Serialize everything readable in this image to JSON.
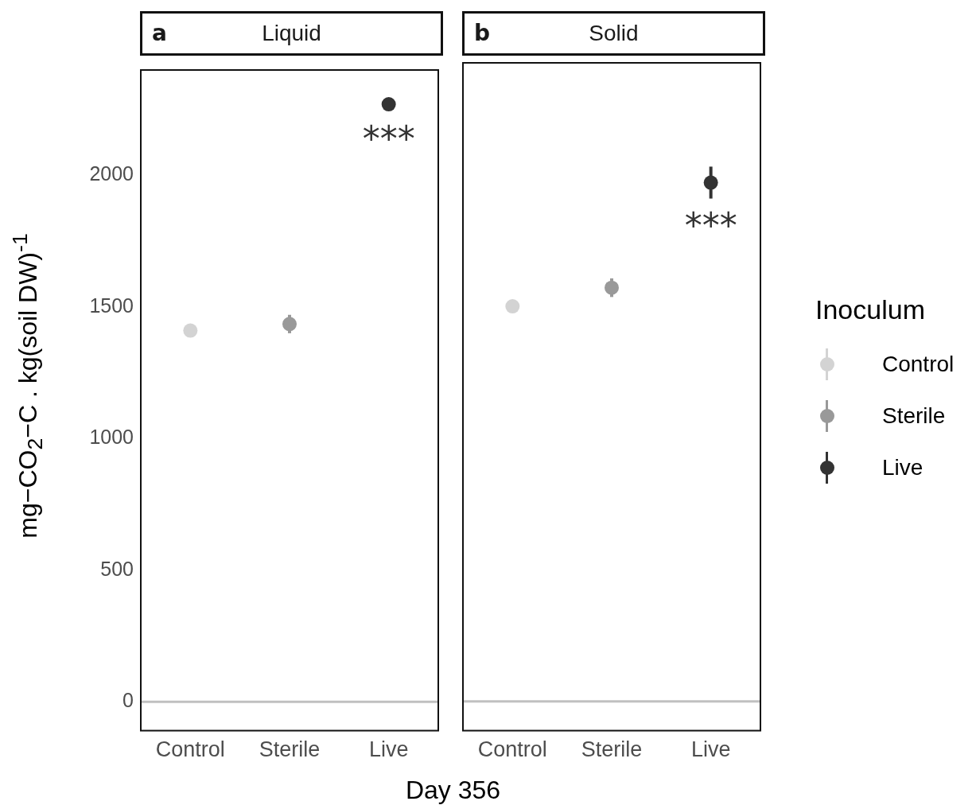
{
  "chart_data": [
    {
      "type": "scatter",
      "title": "Liquid",
      "xlabel": "Day 356",
      "legend_title": "Inoculum",
      "ylabel": "mg−CO$_{2}$−C . kg(soil DW)$^{-1}$",
      "categories": [
        "Control",
        "Sterile",
        "Live"
      ],
      "series": [
        {
          "name": "Control",
          "color": "#d3d3d3",
          "values": [
            1410,
            null,
            null
          ],
          "errors": [
            null,
            null,
            null
          ]
        },
        {
          "name": "Sterile",
          "color": "#999999",
          "values": [
            null,
            1435,
            null
          ],
          "errors": [
            null,
            [
              1400,
              1470
            ],
            null
          ]
        },
        {
          "name": "Live",
          "color": "#333333",
          "values": [
            null,
            null,
            2270
          ],
          "errors": [
            null,
            null,
            null
          ]
        }
      ],
      "ylim": [
        -110,
        2400
      ],
      "yticks": [
        0,
        500,
        1000,
        1500,
        2000
      ],
      "grid": false,
      "legend": "right",
      "marker": "circle",
      "ref_lines": [
        {
          "axis": "y",
          "value": 0,
          "color": "#c0c0c0"
        }
      ],
      "annotations": [
        "a",
        "***"
      ]
    },
    {
      "type": "scatter",
      "title": "Solid",
      "categories": [
        "Control",
        "Sterile",
        "Live"
      ],
      "series": [
        {
          "color": "#d3d3d3",
          "values": [
            1485,
            null,
            null
          ],
          "errors": [
            null,
            null,
            null
          ]
        },
        {
          "color": "#999999",
          "values": [
            null,
            1555,
            null
          ],
          "errors": [
            null,
            [
              1520,
              1590
            ],
            null
          ]
        },
        {
          "color": "#333333",
          "values": [
            null,
            null,
            1950
          ],
          "errors": [
            null,
            null,
            [
              1890,
              2010
            ]
          ]
        }
      ],
      "ylim": [
        -110,
        2400
      ],
      "yticks": [
        0,
        500,
        1000,
        1500,
        2000
      ],
      "tick_labels": "x",
      "grid": false,
      "marker": "circle",
      "ref_lines": [
        {
          "axis": "y",
          "value": 0,
          "color": "#c0c0c0"
        }
      ],
      "annotations": [
        "b",
        "***"
      ]
    }
  ]
}
